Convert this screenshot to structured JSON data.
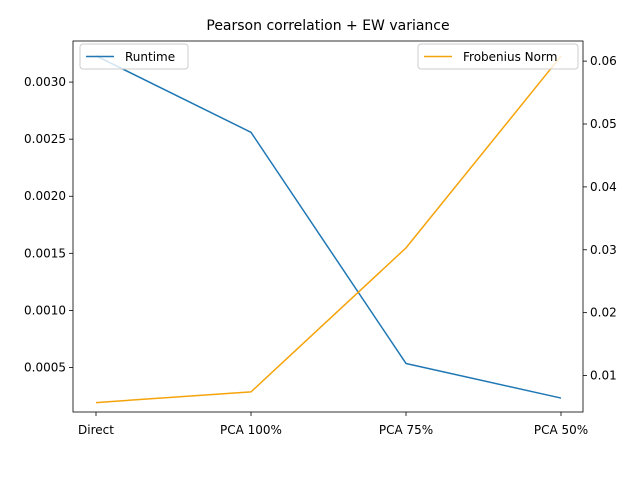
{
  "chart_data": {
    "type": "line",
    "title": "Pearson correlation + EW variance",
    "categories": [
      "Direct",
      "PCA 100%",
      "PCA 75%",
      "PCA 50%"
    ],
    "left_axis": {
      "ylim": [
        0.00011,
        0.00336
      ],
      "ticks": [
        0.0005,
        0.001,
        0.0015,
        0.002,
        0.0025,
        0.003
      ],
      "tick_labels": [
        "0.0005",
        "0.0010",
        "0.0015",
        "0.0020",
        "0.0025",
        "0.0030"
      ]
    },
    "right_axis": {
      "ylim": [
        0.0042,
        0.0632
      ],
      "ticks": [
        0.01,
        0.02,
        0.03,
        0.04,
        0.05,
        0.06
      ],
      "tick_labels": [
        "0.01",
        "0.02",
        "0.03",
        "0.04",
        "0.05",
        "0.06"
      ]
    },
    "series": [
      {
        "name": "Runtime",
        "axis": "left",
        "color": "#1f77b4",
        "values": [
          0.00323,
          0.00256,
          0.000535,
          0.000232
        ],
        "legend": "top-left"
      },
      {
        "name": "Frobenius Norm",
        "axis": "right",
        "color": "#f5a30a",
        "values": [
          0.0057,
          0.0074,
          0.0303,
          0.0608
        ],
        "legend": "top-right"
      }
    ],
    "grid": false
  }
}
